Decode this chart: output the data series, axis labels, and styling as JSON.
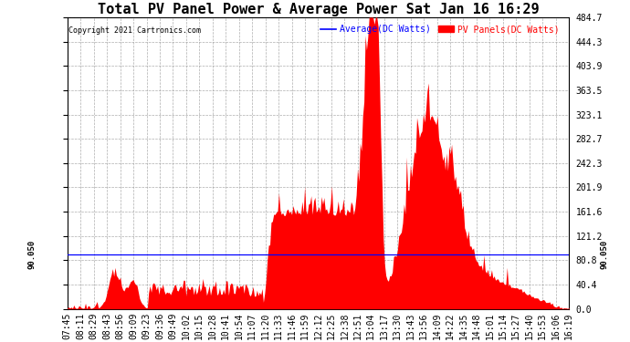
{
  "title": "Total PV Panel Power & Average Power Sat Jan 16 16:29",
  "copyright": "Copyright 2021 Cartronics.com",
  "legend_avg": "Average(DC Watts)",
  "legend_pv": "PV Panels(DC Watts)",
  "avg_value": 90.05,
  "y_max": 484.7,
  "y_min": 0.0,
  "y_ticks": [
    0.0,
    40.4,
    80.8,
    121.2,
    161.6,
    201.9,
    242.3,
    282.7,
    323.1,
    363.5,
    403.9,
    444.3,
    484.7
  ],
  "background_color": "#ffffff",
  "fill_color": "#ff0000",
  "line_color": "#0000ff",
  "grid_color": "#999999",
  "title_fontsize": 11,
  "tick_fontsize": 7,
  "x_labels": [
    "07:45",
    "08:11",
    "08:29",
    "08:43",
    "08:56",
    "09:09",
    "09:23",
    "09:36",
    "09:49",
    "10:02",
    "10:15",
    "10:28",
    "10:41",
    "10:54",
    "11:07",
    "11:20",
    "11:33",
    "11:46",
    "11:59",
    "12:12",
    "12:25",
    "12:38",
    "12:51",
    "13:04",
    "13:17",
    "13:30",
    "13:43",
    "13:56",
    "14:09",
    "14:22",
    "14:35",
    "14:48",
    "15:01",
    "15:14",
    "15:27",
    "15:40",
    "15:53",
    "16:06",
    "16:19"
  ]
}
